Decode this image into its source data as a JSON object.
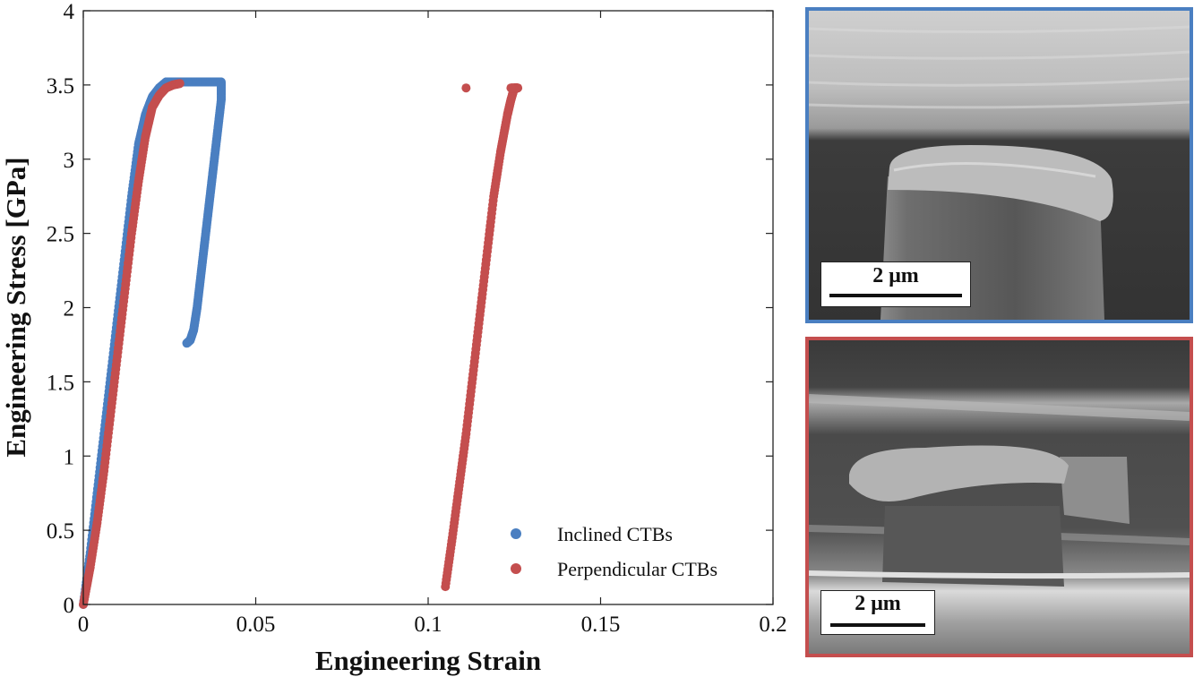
{
  "chart_data": {
    "type": "scatter",
    "xlabel": "Engineering Strain",
    "ylabel": "Engineering Stress [GPa]",
    "xlim": [
      0,
      0.2
    ],
    "ylim": [
      0,
      4
    ],
    "xticks": [
      0,
      0.05,
      0.1,
      0.15,
      0.2
    ],
    "xtick_labels": [
      "0",
      "0.05",
      "0.1",
      "0.15",
      "0.2"
    ],
    "yticks": [
      0,
      0.5,
      1,
      1.5,
      2,
      2.5,
      3,
      3.5,
      4
    ],
    "ytick_labels": [
      "0",
      "0.5",
      "1",
      "1.5",
      "2",
      "2.5",
      "3",
      "3.5",
      "4"
    ],
    "grid": false,
    "legend_position": "bottom-right",
    "series": [
      {
        "name": "Inclined CTBs",
        "color": "#4a7fc1",
        "x": [
          0,
          0.002,
          0.004,
          0.006,
          0.008,
          0.01,
          0.012,
          0.014,
          0.016,
          0.018,
          0.02,
          0.022,
          0.024,
          0.025,
          0.026,
          0.028,
          0.03,
          0.032,
          0.034,
          0.036,
          0.038,
          0.04,
          0.04,
          0.039,
          0.038,
          0.037,
          0.036,
          0.035,
          0.034,
          0.033,
          0.032,
          0.031,
          0.03
        ],
        "y": [
          0,
          0.35,
          0.75,
          1.15,
          1.55,
          1.95,
          2.35,
          2.75,
          3.1,
          3.3,
          3.42,
          3.48,
          3.52,
          3.52,
          3.52,
          3.52,
          3.52,
          3.52,
          3.52,
          3.52,
          3.52,
          3.52,
          3.4,
          3.2,
          3.0,
          2.8,
          2.6,
          2.4,
          2.2,
          2.0,
          1.85,
          1.78,
          1.76
        ]
      },
      {
        "name": "Perpendicular CTBs",
        "color": "#c44e4e",
        "x": [
          0,
          0.002,
          0.004,
          0.006,
          0.008,
          0.01,
          0.012,
          0.014,
          0.016,
          0.018,
          0.02,
          0.022,
          0.024,
          0.026,
          0.028,
          0.111,
          0.105,
          0.107,
          0.109,
          0.111,
          0.113,
          0.115,
          0.117,
          0.119,
          0.121,
          0.123,
          0.124,
          0.125,
          0.126,
          0.124
        ],
        "y": [
          0,
          0.25,
          0.55,
          0.9,
          1.3,
          1.7,
          2.1,
          2.5,
          2.85,
          3.15,
          3.35,
          3.43,
          3.48,
          3.5,
          3.51,
          3.48,
          0.12,
          0.45,
          0.8,
          1.15,
          1.55,
          1.95,
          2.35,
          2.75,
          3.05,
          3.3,
          3.4,
          3.48,
          3.48,
          3.48
        ]
      }
    ]
  },
  "panels": [
    {
      "name": "inclined",
      "border_color": "#4a7fc1",
      "scale_label": "2 μm"
    },
    {
      "name": "perpendicular",
      "border_color": "#c44e4e",
      "scale_label": "2 μm"
    }
  ]
}
